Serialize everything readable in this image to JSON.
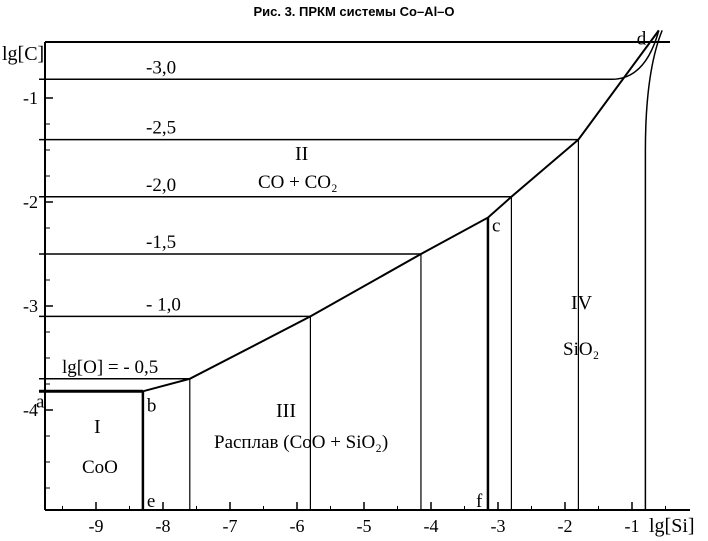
{
  "caption": "Рис. 3. ПРКМ системы Co–Al–O",
  "chart_data": {
    "type": "line",
    "title": "Рис. 3. ПРКМ системы Co–Al–O",
    "xlabel": "lg[Si]",
    "ylabel": "lg[C]",
    "xlim": [
      -9.9,
      -0.25
    ],
    "ylim": [
      -4.95,
      -0.35
    ],
    "xticks": [
      -9,
      -8,
      -7,
      -6,
      -5,
      -4,
      -3,
      -2,
      -1
    ],
    "yticks": [
      -1,
      -2,
      -3,
      -4
    ],
    "boundary_curve": {
      "x": [
        -9.85,
        -8.3,
        -7.6,
        -5.8,
        -4.15,
        -3.15,
        -2.8,
        -1.8,
        -0.6
      ],
      "y": [
        -3.82,
        -3.82,
        -3.7,
        -3.1,
        -2.5,
        -2.15,
        -1.95,
        -1.4,
        -0.35
      ]
    },
    "isobars": [
      {
        "label": "-3,0",
        "value": -3.0,
        "x": [
          -9.85,
          -0.6
        ],
        "y": [
          -0.82,
          -0.35
        ]
      },
      {
        "label": "-2,5",
        "value": -2.5,
        "x": [
          -9.85,
          -1.8
        ],
        "y": [
          -1.4,
          -1.4
        ]
      },
      {
        "label": "-2,0",
        "value": -2.0,
        "x": [
          -9.85,
          -2.8
        ],
        "y": [
          -1.95,
          -1.95
        ]
      },
      {
        "label": "-1,5",
        "value": -1.5,
        "x": [
          -9.85,
          -4.15
        ],
        "y": [
          -2.5,
          -2.5
        ]
      },
      {
        "label": "- 1,0",
        "value": -1.0,
        "x": [
          -9.85,
          -5.8
        ],
        "y": [
          -3.1,
          -3.1
        ]
      },
      {
        "label": "lg[O] = - 0,5",
        "value": -0.5,
        "x": [
          -9.85,
          -7.6
        ],
        "y": [
          -3.7,
          -3.7
        ]
      }
    ],
    "verticals_x": [
      -8.3,
      -7.6,
      -5.8,
      -4.15,
      -3.15,
      -2.8,
      -1.8,
      -0.8
    ],
    "points": [
      {
        "label": "a",
        "x": -9.85,
        "y": -3.82
      },
      {
        "label": "b",
        "x": -8.3,
        "y": -3.82
      },
      {
        "label": "c",
        "x": -3.15,
        "y": -2.15
      },
      {
        "label": "d",
        "x": -0.6,
        "y": -0.35
      },
      {
        "label": "e",
        "x": -8.3,
        "y": -4.95
      },
      {
        "label": "f",
        "x": -3.15,
        "y": -4.95
      }
    ],
    "regions": [
      {
        "roman": "I",
        "phase": "CoO"
      },
      {
        "roman": "II",
        "phase": "CO + CO₂"
      },
      {
        "roman": "III",
        "phase": "Расплав (CoO + SiO₂)"
      },
      {
        "roman": "IV",
        "phase": "SiO₂"
      }
    ],
    "grid": false,
    "legend": "none"
  }
}
